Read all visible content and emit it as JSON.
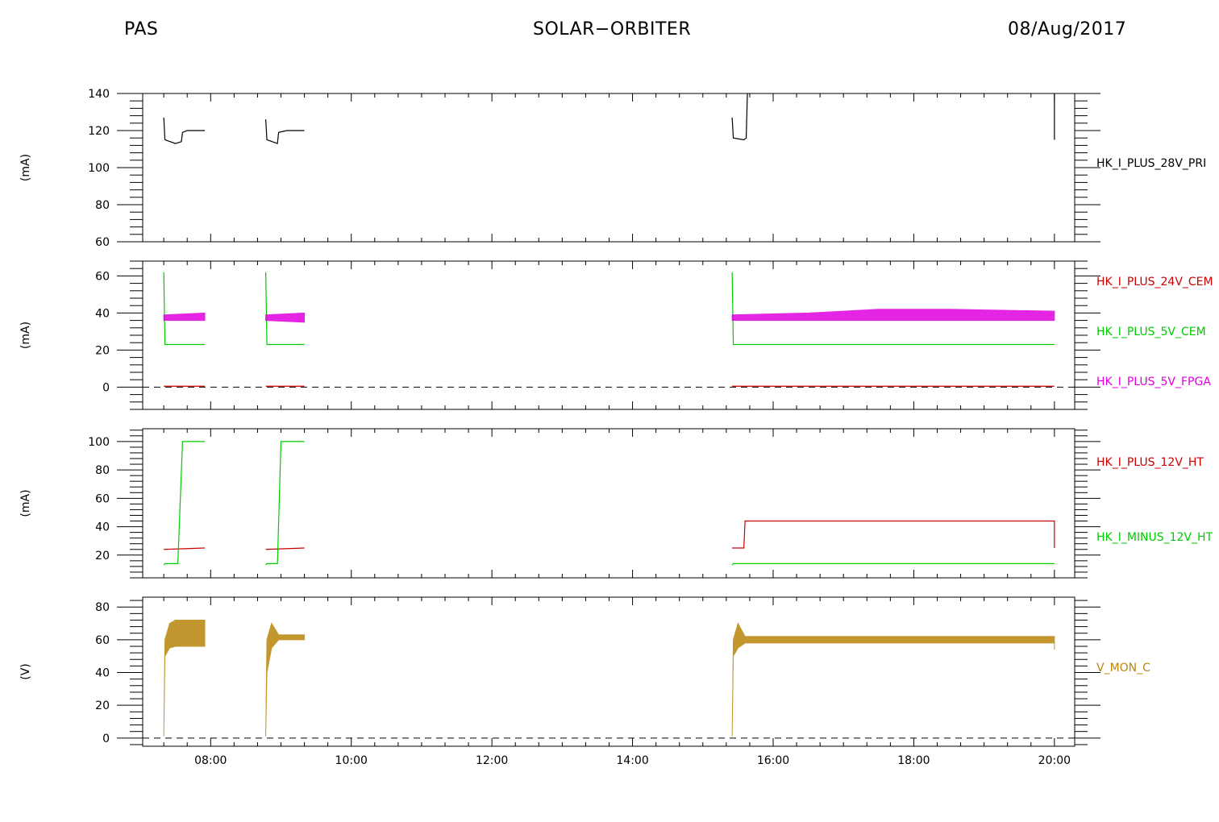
{
  "header": {
    "left": "PAS",
    "center": "SOLAR−ORBITER",
    "right": "08/Aug/2017"
  },
  "colors": {
    "black": "#000000",
    "red": "#cc0000",
    "green": "#00cc00",
    "magenta": "#e000e0",
    "gold": "#b8860b"
  },
  "chart_data": [
    {
      "type": "line",
      "ylabel": "(mA)",
      "ylim": [
        60,
        140
      ],
      "yticks": [
        60,
        80,
        100,
        120,
        140
      ],
      "xlim": [
        "06:40",
        "20:40"
      ],
      "xticks": [
        "08:00",
        "10:00",
        "12:00",
        "14:00",
        "16:00",
        "18:00",
        "20:00"
      ],
      "series": [
        {
          "name": "HK_I_PLUS_28V_PRI",
          "color": "black",
          "segments": [
            [
              [
                "07:20",
                127
              ],
              [
                "07:21",
                115
              ],
              [
                "07:30",
                113
              ],
              [
                "07:35",
                114
              ],
              [
                "07:36",
                119
              ],
              [
                "07:40",
                120
              ],
              [
                "07:55",
                120
              ]
            ],
            [
              [
                "08:47",
                126
              ],
              [
                "08:48",
                115
              ],
              [
                "08:57",
                113
              ],
              [
                "08:58",
                119
              ],
              [
                "09:05",
                120
              ],
              [
                "09:20",
                120
              ]
            ],
            [
              [
                "15:25",
                127
              ],
              [
                "15:26",
                116
              ],
              [
                "15:35",
                115
              ],
              [
                "15:37",
                116
              ],
              [
                "15:38",
                140
              ]
            ],
            [
              [
                "20:00",
                115
              ],
              [
                "20:00",
                140
              ]
            ]
          ]
        }
      ]
    },
    {
      "type": "line",
      "ylabel": "(mA)",
      "ylim": [
        -12,
        68
      ],
      "yticks": [
        0,
        20,
        40,
        60
      ],
      "zero_line": true,
      "xlim": [
        "06:40",
        "20:40"
      ],
      "xticks": [
        "08:00",
        "10:00",
        "12:00",
        "14:00",
        "16:00",
        "18:00",
        "20:00"
      ],
      "series": [
        {
          "name": "HK_I_PLUS_24V_CEM",
          "color": "red",
          "segments": [
            [
              [
                "07:20",
                0.5
              ],
              [
                "07:55",
                0.5
              ]
            ],
            [
              [
                "08:47",
                0.5
              ],
              [
                "09:20",
                0.5
              ]
            ],
            [
              [
                "15:25",
                0.5
              ],
              [
                "20:00",
                0.5
              ]
            ]
          ]
        },
        {
          "name": "HK_I_PLUS_5V_CEM",
          "color": "green",
          "segments": [
            [
              [
                "07:20",
                62
              ],
              [
                "07:21",
                23
              ],
              [
                "07:55",
                23
              ]
            ],
            [
              [
                "08:47",
                62
              ],
              [
                "08:48",
                23
              ],
              [
                "09:20",
                23
              ]
            ],
            [
              [
                "15:25",
                62
              ],
              [
                "15:26",
                23
              ],
              [
                "20:00",
                23
              ]
            ]
          ]
        },
        {
          "name": "HK_I_PLUS_5V_FPGA",
          "color": "magenta",
          "band": true,
          "segments": [
            [
              [
                "07:20",
                36,
                39
              ],
              [
                "07:55",
                36,
                40
              ]
            ],
            [
              [
                "08:47",
                36,
                39
              ],
              [
                "09:20",
                35,
                40
              ]
            ],
            [
              [
                "15:25",
                36,
                39
              ],
              [
                "16:30",
                36,
                40
              ],
              [
                "17:30",
                36,
                42
              ],
              [
                "18:30",
                36,
                42
              ],
              [
                "20:00",
                36,
                41
              ]
            ]
          ]
        }
      ]
    },
    {
      "type": "line",
      "ylabel": "(mA)",
      "ylim": [
        4,
        109
      ],
      "yticks": [
        20,
        40,
        60,
        80,
        100
      ],
      "xlim": [
        "06:40",
        "20:40"
      ],
      "xticks": [
        "08:00",
        "10:00",
        "12:00",
        "14:00",
        "16:00",
        "18:00",
        "20:00"
      ],
      "series": [
        {
          "name": "HK_I_PLUS_12V_HT",
          "color": "red",
          "segments": [
            [
              [
                "07:20",
                24
              ],
              [
                "07:55",
                25
              ]
            ],
            [
              [
                "08:47",
                24
              ],
              [
                "09:20",
                25
              ]
            ],
            [
              [
                "15:25",
                25
              ],
              [
                "15:35",
                25
              ],
              [
                "15:36",
                44
              ],
              [
                "20:00",
                44
              ],
              [
                "20:00",
                25
              ]
            ]
          ]
        },
        {
          "name": "HK_I_MINUS_12V_HT",
          "color": "green",
          "segments": [
            [
              [
                "07:20",
                13
              ],
              [
                "07:21",
                14
              ],
              [
                "07:32",
                14
              ],
              [
                "07:36",
                100
              ],
              [
                "07:55",
                100
              ]
            ],
            [
              [
                "08:47",
                13
              ],
              [
                "08:48",
                14
              ],
              [
                "08:57",
                14
              ],
              [
                "09:00",
                100
              ],
              [
                "09:20",
                100
              ]
            ],
            [
              [
                "15:25",
                13
              ],
              [
                "15:26",
                14
              ],
              [
                "20:00",
                14
              ]
            ]
          ]
        }
      ]
    },
    {
      "type": "line",
      "ylabel": "(V)",
      "ylim": [
        -5,
        86
      ],
      "yticks": [
        0,
        20,
        40,
        60,
        80
      ],
      "zero_line": true,
      "xlim": [
        "06:40",
        "20:40"
      ],
      "xticks": [
        "08:00",
        "10:00",
        "12:00",
        "14:00",
        "16:00",
        "18:00",
        "20:00"
      ],
      "series": [
        {
          "name": "V_MON_C",
          "color": "gold",
          "band": true,
          "segments": [
            [
              [
                "07:20",
                1,
                1
              ],
              [
                "07:21",
                50,
                60
              ],
              [
                "07:25",
                55,
                70
              ],
              [
                "07:30",
                56,
                72
              ],
              [
                "07:55",
                56,
                72
              ]
            ],
            [
              [
                "08:47",
                1,
                1
              ],
              [
                "08:48",
                40,
                60
              ],
              [
                "08:52",
                55,
                70
              ],
              [
                "08:58",
                60,
                63
              ],
              [
                "09:20",
                60,
                63
              ]
            ],
            [
              [
                "15:25",
                1,
                1
              ],
              [
                "15:26",
                50,
                60
              ],
              [
                "15:30",
                55,
                70
              ],
              [
                "15:36",
                58,
                62
              ],
              [
                "20:00",
                58,
                62
              ],
              [
                "20:00",
                54,
                60
              ]
            ]
          ]
        }
      ]
    }
  ]
}
